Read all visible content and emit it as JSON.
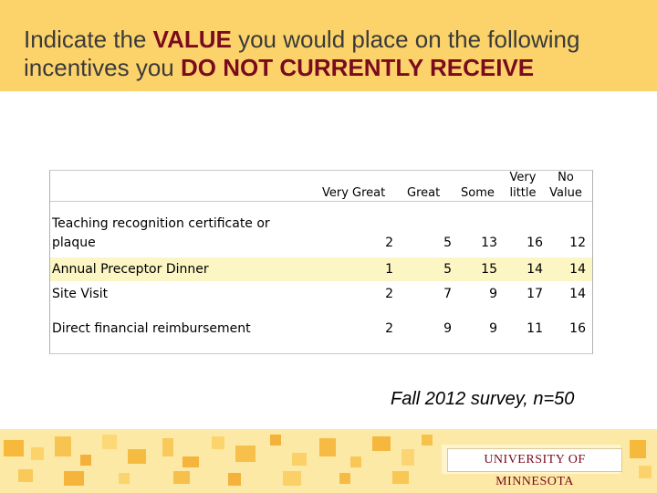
{
  "title": {
    "part1": "Indicate the ",
    "emph1": "VALUE",
    "part2": " you would place on the following incentives you ",
    "emph2": "DO NOT CURRENTLY RECEIVE"
  },
  "table": {
    "columns": [
      "Very Great",
      "Great",
      "Some",
      "Very little",
      "No Value"
    ],
    "column_lines": [
      [
        "Very Great"
      ],
      [
        "Great"
      ],
      [
        "Some"
      ],
      [
        "Very",
        "little"
      ],
      [
        "No",
        "Value"
      ]
    ],
    "rows": [
      {
        "label_lines": [
          "Teaching recognition certificate or",
          "plaque"
        ],
        "values": [
          2,
          5,
          13,
          16,
          12
        ]
      },
      {
        "label_lines": [
          "Annual Preceptor Dinner"
        ],
        "values": [
          1,
          5,
          15,
          14,
          14
        ]
      },
      {
        "label_lines": [
          "Site Visit"
        ],
        "values": [
          2,
          7,
          9,
          17,
          14
        ]
      },
      {
        "label_lines": [
          "Direct financial reimbursement"
        ],
        "values": [
          2,
          9,
          9,
          11,
          16
        ]
      }
    ]
  },
  "footnote": "Fall 2012 survey, n=50",
  "logo_text": "UNIVERSITY OF MINNESOTA",
  "colors": {
    "header_bg": "#fcd36b",
    "maroon": "#7a0a1e",
    "row_highlight": "#fbf6c4"
  }
}
